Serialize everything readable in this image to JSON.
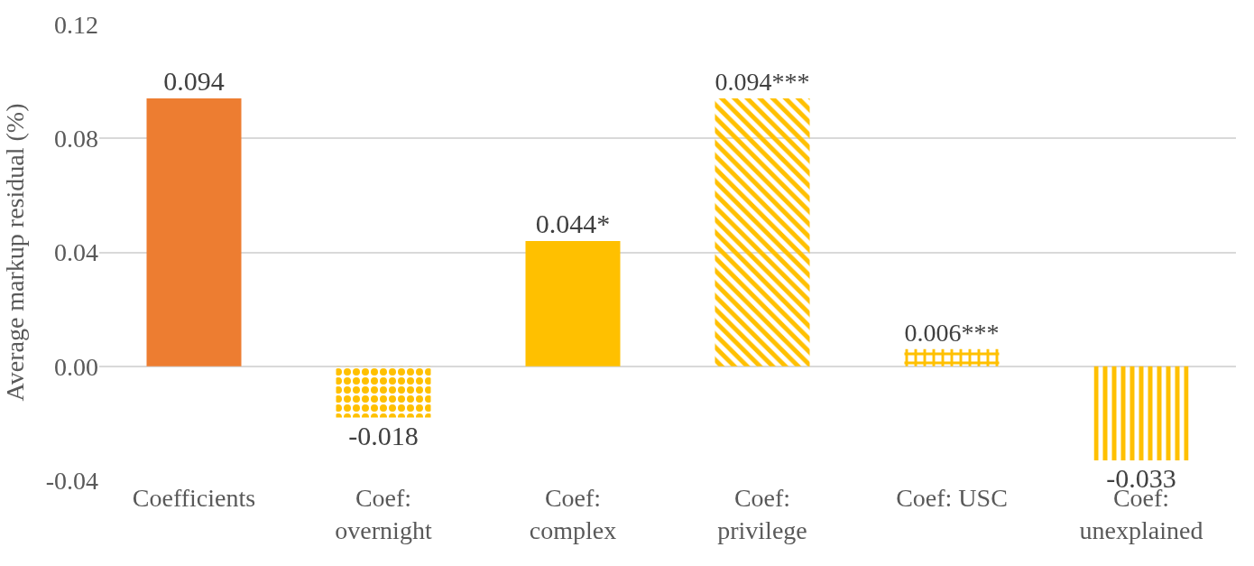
{
  "chart_data": {
    "type": "bar",
    "ylabel": "Average markup residual (%)",
    "categories": [
      "Coefficients",
      "Coef: overnight",
      "Coef: complex",
      "Coef: privilege",
      "Coef: USC",
      "Coef: unexplained"
    ],
    "values": [
      0.094,
      -0.018,
      0.044,
      0.094,
      0.006,
      -0.033
    ],
    "colors": [
      "#ed7d31",
      "#ffc000",
      "#ffc000",
      "#ffc000",
      "#ffc000",
      "#ffc000"
    ],
    "value_labels": [
      "0.094",
      "-0.018",
      "0.044*",
      "0.094***",
      "0.006***",
      "-0.033"
    ],
    "ylim": [
      -0.04,
      0.12
    ],
    "yticks": [
      {
        "value": -0.04,
        "label": "-0.04"
      },
      {
        "value": 0,
        "label": "0.00"
      },
      {
        "value": 0.04,
        "label": "0.04"
      },
      {
        "value": 0.08,
        "label": "0.08"
      },
      {
        "value": 0.12,
        "label": "0.12"
      }
    ],
    "grid": "y"
  }
}
